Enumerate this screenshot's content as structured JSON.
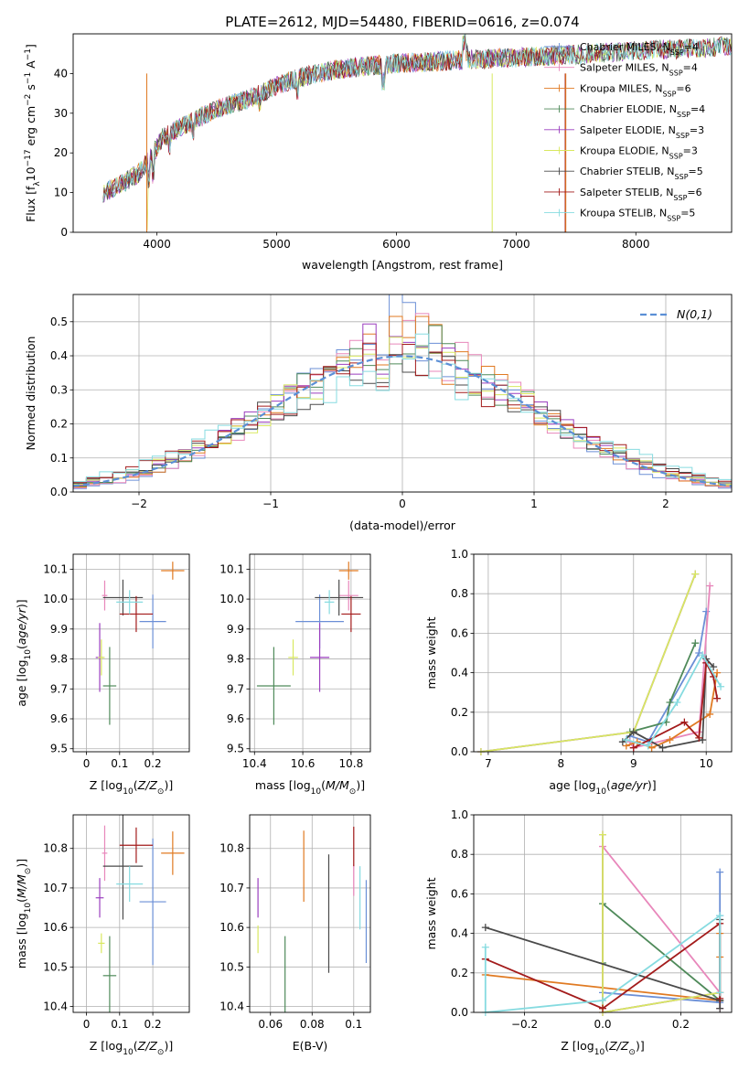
{
  "figure_title": "PLATE=2612, MJD=54480, FIBERID=0616, z=0.074",
  "colors": {
    "Chabrier MILES": "#6b8fd6",
    "Salpeter MILES": "#e887bb",
    "Kroupa MILES": "#e07a22",
    "Chabrier ELODIE": "#4f8a5a",
    "Salpeter ELODIE": "#9b3fbf",
    "Kroupa ELODIE": "#d8e860",
    "Chabrier STELIB": "#4a4a4a",
    "Salpeter STELIB": "#a31b1b",
    "Kroupa STELIB": "#86dbe0"
  },
  "chart_data": [
    {
      "id": "spectrum",
      "type": "line",
      "title": "PLATE=2612, MJD=54480, FIBERID=0616, z=0.074",
      "xlabel": "wavelength [Angstrom, rest frame]",
      "ylabel": "Flux [f_λ 10^-17 erg cm^-2 s^-1 A^-1]",
      "xlim": [
        3300,
        8800
      ],
      "ylim": [
        0,
        50
      ],
      "xticks": [
        4000,
        5000,
        6000,
        7000,
        8000
      ],
      "yticks": [
        0,
        10,
        20,
        30,
        40
      ],
      "grid": false,
      "legend_position": "right",
      "continuum": {
        "x": [
          3550,
          3700,
          3850,
          3950,
          4050,
          4300,
          4500,
          4800,
          5000,
          5200,
          5500,
          5800,
          6000,
          6300,
          6600,
          7000,
          7300,
          7600,
          7900,
          8200,
          8600,
          8800
        ],
        "y": [
          10,
          12,
          15,
          19,
          24,
          28,
          31,
          34,
          37,
          39,
          41,
          42,
          42.5,
          43,
          43.5,
          44,
          44.5,
          45,
          45.5,
          46,
          46.5,
          47
        ]
      },
      "series": [
        {
          "name": "Chabrier MILES, N_SSP=4",
          "label_main": "Chabrier MILES, N",
          "n_ssp": "4"
        },
        {
          "name": "Salpeter MILES, N_SSP=4",
          "label_main": "Salpeter MILES, N",
          "n_ssp": "4"
        },
        {
          "name": "Kroupa MILES, N_SSP=6",
          "label_main": "Kroupa MILES, N",
          "n_ssp": "6"
        },
        {
          "name": "Chabrier ELODIE, N_SSP=4",
          "label_main": "Chabrier ELODIE, N",
          "n_ssp": "4"
        },
        {
          "name": "Salpeter ELODIE, N_SSP=3",
          "label_main": "Salpeter ELODIE, N",
          "n_ssp": "3"
        },
        {
          "name": "Kroupa ELODIE, N_SSP=3",
          "label_main": "Kroupa ELODIE, N",
          "n_ssp": "3"
        },
        {
          "name": "Chabrier STELIB, N_SSP=5",
          "label_main": "Chabrier STELIB, N",
          "n_ssp": "5"
        },
        {
          "name": "Salpeter STELIB, N_SSP=6",
          "label_main": "Salpeter STELIB, N",
          "n_ssp": "6"
        },
        {
          "name": "Kroupa STELIB, N_SSP=5",
          "label_main": "Kroupa STELIB, N",
          "n_ssp": "5"
        }
      ]
    },
    {
      "id": "residuals",
      "type": "line",
      "xlabel": "(data-model)/error",
      "ylabel": "Normed distribution",
      "xlim": [
        -2.5,
        2.5
      ],
      "ylim": [
        0,
        0.58
      ],
      "xticks": [
        -2,
        -1,
        0,
        1,
        2
      ],
      "yticks": [
        0.0,
        0.1,
        0.2,
        0.3,
        0.4,
        0.5
      ],
      "grid": true,
      "reference_curve": "N(0,1)",
      "legend_position": "top-right",
      "bins": [
        -2.5,
        -2.4,
        -2.3,
        -2.2,
        -2.1,
        -2.0,
        -1.9,
        -1.8,
        -1.7,
        -1.6,
        -1.5,
        -1.4,
        -1.3,
        -1.2,
        -1.1,
        -1.0,
        -0.9,
        -0.8,
        -0.7,
        -0.6,
        -0.5,
        -0.4,
        -0.3,
        -0.2,
        -0.1,
        0.0,
        0.1,
        0.2,
        0.3,
        0.4,
        0.5,
        0.6,
        0.7,
        0.8,
        0.9,
        1.0,
        1.1,
        1.2,
        1.3,
        1.4,
        1.5,
        1.6,
        1.7,
        1.8,
        1.9,
        2.0,
        2.1,
        2.2,
        2.3,
        2.4,
        2.5
      ]
    },
    {
      "id": "age_vs_Z",
      "type": "scatter",
      "xlabel": "Z [log10(Z/Z_sun)]",
      "ylabel": "age [log10(age/yr)]",
      "xlim": [
        -0.04,
        0.31
      ],
      "ylim": [
        9.49,
        10.15
      ],
      "xticks": [
        0.0,
        0.1,
        0.2
      ],
      "yticks": [
        9.5,
        9.6,
        9.7,
        9.8,
        9.9,
        10.0,
        10.1
      ],
      "grid": true,
      "points": [
        {
          "model": "Chabrier MILES",
          "x": 0.2,
          "xerr": 0.04,
          "y": 9.925,
          "yerr": 0.09
        },
        {
          "model": "Salpeter MILES",
          "x": 0.055,
          "xerr": 0.008,
          "y": 10.012,
          "yerr": 0.05
        },
        {
          "model": "Kroupa MILES",
          "x": 0.26,
          "xerr": 0.035,
          "y": 10.095,
          "yerr": 0.03
        },
        {
          "model": "Chabrier ELODIE",
          "x": 0.07,
          "xerr": 0.02,
          "y": 9.71,
          "yerr": 0.13
        },
        {
          "model": "Salpeter ELODIE",
          "x": 0.04,
          "xerr": 0.012,
          "y": 9.805,
          "yerr": 0.115
        },
        {
          "model": "Kroupa ELODIE",
          "x": 0.045,
          "xerr": 0.01,
          "y": 9.805,
          "yerr": 0.06
        },
        {
          "model": "Chabrier STELIB",
          "x": 0.11,
          "xerr": 0.06,
          "y": 10.005,
          "yerr": 0.06
        },
        {
          "model": "Salpeter STELIB",
          "x": 0.15,
          "xerr": 0.05,
          "y": 9.95,
          "yerr": 0.06
        },
        {
          "model": "Kroupa STELIB",
          "x": 0.13,
          "xerr": 0.04,
          "y": 9.99,
          "yerr": 0.04
        }
      ]
    },
    {
      "id": "age_vs_mass",
      "type": "scatter",
      "xlabel": "mass [log10(M/M_sun)]",
      "ylim": [
        9.49,
        10.15
      ],
      "xlim": [
        10.38,
        10.88
      ],
      "xticks": [
        10.4,
        10.6,
        10.8
      ],
      "yticks": [
        9.5,
        9.6,
        9.7,
        9.8,
        9.9,
        10.0,
        10.1
      ],
      "grid": true,
      "points": [
        {
          "model": "Chabrier MILES",
          "x": 10.67,
          "xerr": 0.1,
          "y": 9.925,
          "yerr": 0.09
        },
        {
          "model": "Salpeter MILES",
          "x": 10.79,
          "xerr": 0.04,
          "y": 10.012,
          "yerr": 0.05
        },
        {
          "model": "Kroupa MILES",
          "x": 10.79,
          "xerr": 0.04,
          "y": 10.095,
          "yerr": 0.03
        },
        {
          "model": "Chabrier ELODIE",
          "x": 10.48,
          "xerr": 0.07,
          "y": 9.71,
          "yerr": 0.13
        },
        {
          "model": "Salpeter ELODIE",
          "x": 10.67,
          "xerr": 0.04,
          "y": 9.805,
          "yerr": 0.115
        },
        {
          "model": "Kroupa ELODIE",
          "x": 10.56,
          "xerr": 0.02,
          "y": 9.805,
          "yerr": 0.06
        },
        {
          "model": "Chabrier STELIB",
          "x": 10.75,
          "xerr": 0.1,
          "y": 10.005,
          "yerr": 0.06
        },
        {
          "model": "Salpeter STELIB",
          "x": 10.8,
          "xerr": 0.04,
          "y": 9.95,
          "yerr": 0.06
        },
        {
          "model": "Kroupa STELIB",
          "x": 10.71,
          "xerr": 0.02,
          "y": 9.99,
          "yerr": 0.04
        }
      ]
    },
    {
      "id": "weight_vs_age",
      "type": "line",
      "xlabel": "age [log10(age/yr)]",
      "ylabel": "mass weight",
      "xlim": [
        6.8,
        10.35
      ],
      "ylim": [
        0,
        1
      ],
      "xticks": [
        7,
        8,
        9,
        10
      ],
      "yticks": [
        0.0,
        0.2,
        0.4,
        0.6,
        0.8,
        1.0
      ],
      "grid": true,
      "series": [
        {
          "model": "Chabrier MILES",
          "x": [
            8.95,
            9.2,
            9.9,
            10.0
          ],
          "y": [
            0.08,
            0.05,
            0.5,
            0.71
          ]
        },
        {
          "model": "Salpeter MILES",
          "x": [
            8.95,
            9.0,
            9.9,
            10.05
          ],
          "y": [
            0.05,
            0.02,
            0.1,
            0.84
          ]
        },
        {
          "model": "Kroupa MILES",
          "x": [
            8.9,
            9.05,
            9.25,
            9.5,
            10.05,
            10.15
          ],
          "y": [
            0.03,
            0.05,
            0.02,
            0.06,
            0.19,
            0.4
          ]
        },
        {
          "model": "Chabrier ELODIE",
          "x": [
            8.95,
            9.45,
            9.5,
            9.85
          ],
          "y": [
            0.1,
            0.15,
            0.25,
            0.55
          ]
        },
        {
          "model": "Salpeter ELODIE",
          "x": [
            6.9,
            9.0,
            9.85
          ],
          "y": [
            0.0,
            0.1,
            0.9
          ]
        },
        {
          "model": "Kroupa ELODIE",
          "x": [
            6.9,
            9.0,
            9.85
          ],
          "y": [
            0.0,
            0.1,
            0.9
          ]
        },
        {
          "model": "Chabrier STELIB",
          "x": [
            8.85,
            9.0,
            9.4,
            9.95,
            10.0,
            10.1
          ],
          "y": [
            0.05,
            0.1,
            0.02,
            0.06,
            0.47,
            0.43
          ]
        },
        {
          "model": "Salpeter STELIB",
          "x": [
            9.0,
            9.7,
            9.9,
            10.0,
            10.1,
            10.15
          ],
          "y": [
            0.02,
            0.15,
            0.07,
            0.45,
            0.38,
            0.27
          ]
        },
        {
          "model": "Kroupa STELIB",
          "x": [
            8.9,
            9.2,
            9.6,
            9.95,
            10.2
          ],
          "y": [
            0.06,
            0.03,
            0.25,
            0.49,
            0.33
          ]
        }
      ]
    },
    {
      "id": "mass_vs_Z",
      "type": "scatter",
      "xlabel": "Z [log10(Z/Z_sun)]",
      "ylabel": "mass [log10(M/M_sun)]",
      "xlim": [
        -0.04,
        0.31
      ],
      "ylim": [
        10.385,
        10.885
      ],
      "xticks": [
        0.0,
        0.1,
        0.2
      ],
      "yticks": [
        10.4,
        10.5,
        10.6,
        10.7,
        10.8
      ],
      "grid": true,
      "points": [
        {
          "model": "Chabrier MILES",
          "x": 0.2,
          "xerr": 0.04,
          "y": 10.665,
          "yerr": 0.16
        },
        {
          "model": "Salpeter MILES",
          "x": 0.055,
          "xerr": 0.008,
          "y": 10.788,
          "yerr": 0.07
        },
        {
          "model": "Kroupa MILES",
          "x": 0.26,
          "xerr": 0.035,
          "y": 10.788,
          "yerr": 0.055
        },
        {
          "model": "Chabrier ELODIE",
          "x": 0.07,
          "xerr": 0.02,
          "y": 10.478,
          "yerr": 0.1
        },
        {
          "model": "Salpeter ELODIE",
          "x": 0.04,
          "xerr": 0.012,
          "y": 10.675,
          "yerr": 0.05
        },
        {
          "model": "Kroupa ELODIE",
          "x": 0.045,
          "xerr": 0.01,
          "y": 10.56,
          "yerr": 0.025
        },
        {
          "model": "Chabrier STELIB",
          "x": 0.11,
          "xerr": 0.06,
          "y": 10.755,
          "yerr": 0.135
        },
        {
          "model": "Salpeter STELIB",
          "x": 0.15,
          "xerr": 0.05,
          "y": 10.808,
          "yerr": 0.045
        },
        {
          "model": "Kroupa STELIB",
          "x": 0.13,
          "xerr": 0.04,
          "y": 10.71,
          "yerr": 0.045
        }
      ]
    },
    {
      "id": "mass_vs_ebv",
      "type": "scatter",
      "xlabel": "E(B-V)",
      "xlim": [
        0.05,
        0.108
      ],
      "ylim": [
        10.385,
        10.885
      ],
      "xticks": [
        0.06,
        0.08,
        0.1
      ],
      "yticks": [
        10.4,
        10.5,
        10.6,
        10.7,
        10.8
      ],
      "grid": true,
      "points": [
        {
          "model": "Chabrier MILES",
          "x": 0.106,
          "y": 10.615,
          "yerr": 0.105
        },
        {
          "model": "Salpeter MILES",
          "x": 0.1,
          "y": 10.72,
          "yerr": 0.04
        },
        {
          "model": "Kroupa MILES",
          "x": 0.076,
          "y": 10.755,
          "yerr": 0.09
        },
        {
          "model": "Chabrier ELODIE",
          "x": 0.067,
          "y": 10.478,
          "yerr": 0.1
        },
        {
          "model": "Salpeter ELODIE",
          "x": 0.054,
          "y": 10.675,
          "yerr": 0.05
        },
        {
          "model": "Kroupa ELODIE",
          "x": 0.054,
          "y": 10.57,
          "yerr": 0.035
        },
        {
          "model": "Chabrier STELIB",
          "x": 0.088,
          "y": 10.635,
          "yerr": 0.15
        },
        {
          "model": "Salpeter STELIB",
          "x": 0.1,
          "y": 10.805,
          "yerr": 0.05
        },
        {
          "model": "Kroupa STELIB",
          "x": 0.103,
          "y": 10.675,
          "yerr": 0.08
        }
      ]
    },
    {
      "id": "weight_vs_Z",
      "type": "line",
      "xlabel": "Z [log10(Z/Z_sun)]",
      "ylabel": "mass weight",
      "xlim": [
        -0.33,
        0.33
      ],
      "ylim": [
        0,
        1
      ],
      "xticks": [
        -0.2,
        0.0,
        0.2
      ],
      "yticks": [
        0.0,
        0.2,
        0.4,
        0.6,
        0.8,
        1.0
      ],
      "grid": true,
      "series": [
        {
          "model": "Chabrier MILES",
          "x": [
            0.0,
            0.3,
            0.3,
            0.3
          ],
          "y": [
            0.1,
            0.05,
            0.49,
            0.71
          ]
        },
        {
          "model": "Salpeter MILES",
          "x": [
            0.0,
            0.3,
            0.3
          ],
          "y": [
            0.84,
            0.1,
            0.02
          ]
        },
        {
          "model": "Kroupa MILES",
          "x": [
            -0.3,
            0.3,
            0.3,
            0.3
          ],
          "y": [
            0.19,
            0.06,
            0.28,
            0.4
          ]
        },
        {
          "model": "Chabrier ELODIE",
          "x": [
            0.0,
            0.0,
            0.3
          ],
          "y": [
            0.25,
            0.55,
            0.06
          ]
        },
        {
          "model": "Salpeter ELODIE",
          "x": [
            0.0,
            0.0,
            0.3
          ],
          "y": [
            0.9,
            0.0,
            0.1
          ]
        },
        {
          "model": "Kroupa ELODIE",
          "x": [
            0.0,
            0.0,
            0.3
          ],
          "y": [
            0.9,
            0.0,
            0.1
          ]
        },
        {
          "model": "Chabrier STELIB",
          "x": [
            -0.3,
            0.3,
            0.3,
            0.3
          ],
          "y": [
            0.43,
            0.06,
            0.47,
            0.02
          ]
        },
        {
          "model": "Salpeter STELIB",
          "x": [
            -0.3,
            0.0,
            0.3,
            0.3
          ],
          "y": [
            0.27,
            0.02,
            0.45,
            0.07
          ]
        },
        {
          "model": "Kroupa STELIB",
          "x": [
            -0.3,
            -0.3,
            0.0,
            0.3,
            0.3
          ],
          "y": [
            0.33,
            0.0,
            0.06,
            0.49,
            0.1
          ]
        }
      ]
    }
  ]
}
